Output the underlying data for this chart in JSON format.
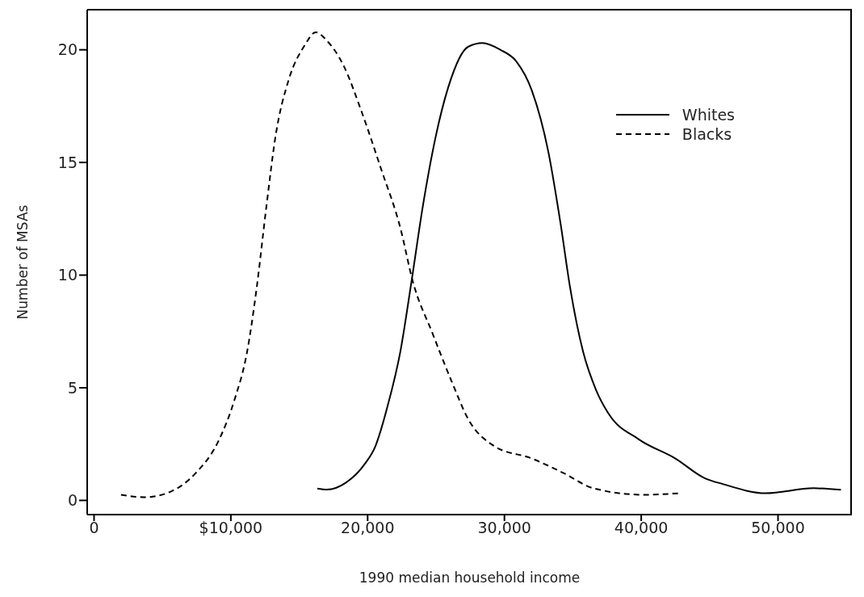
{
  "chart_data": {
    "type": "line",
    "xlabel": "1990 median household income",
    "ylabel": "Number of MSAs",
    "xlim": [
      -500,
      55400
    ],
    "ylim": [
      -0.63,
      21.78
    ],
    "xticks": [
      0,
      {
        "value": 10000,
        "label": "$10,000"
      },
      {
        "value": 20000,
        "label": "20,000"
      },
      {
        "value": 30000,
        "label": "30,000"
      },
      {
        "value": 40000,
        "label": "40,000"
      },
      {
        "value": 50000,
        "label": "50,000"
      }
    ],
    "yticks": [
      0,
      5,
      10,
      15,
      20
    ],
    "grid": false,
    "legend": "top right",
    "marker": "none",
    "series": [
      {
        "name": "Whites",
        "color": "#000000",
        "line_style": "solid",
        "x": [
          16320,
          17030,
          18420,
          19820,
          20530,
          21460,
          22390,
          23210,
          24020,
          24960,
          25900,
          27360,
          28400,
          29700,
          30850,
          32000,
          33200,
          34100,
          34800,
          35750,
          36700,
          37600,
          39800,
          42500,
          44600,
          46000,
          49100,
          52600,
          54600
        ],
        "values": [
          0.53,
          0.48,
          0.79,
          1.64,
          2.35,
          4.19,
          6.6,
          9.73,
          13.0,
          16.1,
          18.35,
          20.14,
          20.3,
          20.0,
          19.5,
          18.2,
          15.5,
          12.3,
          9.45,
          6.6,
          4.9,
          3.86,
          2.72,
          1.86,
          1.0,
          0.72,
          0.32,
          0.54,
          0.47
        ]
      },
      {
        "name": "Blacks",
        "color": "#000000",
        "line_style": "dashed",
        "x": [
          1970,
          3720,
          5600,
          7430,
          9090,
          10270,
          11190,
          11890,
          12590,
          13290,
          14220,
          15400,
          16200,
          17030,
          18200,
          19590,
          20990,
          22390,
          23310,
          24720,
          26130,
          27360,
          29200,
          32000,
          34300,
          36500,
          40200,
          42800
        ],
        "values": [
          0.25,
          0.14,
          0.39,
          1.21,
          2.63,
          4.47,
          6.6,
          9.44,
          13.0,
          16.25,
          18.65,
          20.2,
          20.78,
          20.4,
          19.35,
          17.2,
          14.7,
          12.1,
          9.7,
          7.45,
          5.3,
          3.6,
          2.43,
          1.86,
          1.22,
          0.54,
          0.25,
          0.32
        ]
      }
    ]
  }
}
